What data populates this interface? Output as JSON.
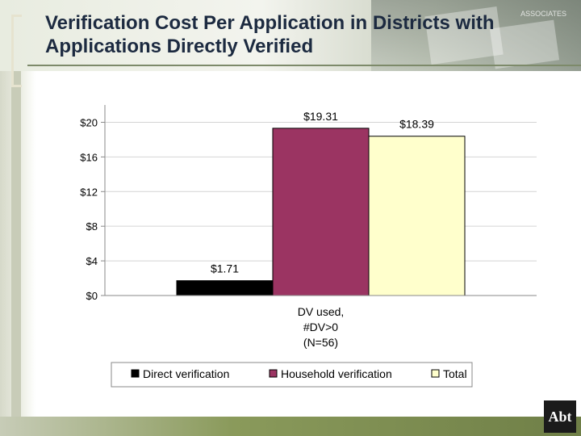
{
  "slide": {
    "title": "Verification Cost Per Application in Districts with Applications Directly Verified",
    "header_label": "ASSOCIATES",
    "logo": "Abt"
  },
  "colors": {
    "direct": "#000000",
    "household": "#9b3462",
    "total": "#ffffcc",
    "title": "#1c2a40",
    "footer": "#7d8a4e"
  },
  "chart_data": {
    "type": "bar",
    "categories": [
      "DV used,\n#DV>0\n(N=56)"
    ],
    "category_lines": [
      "DV used,",
      "#DV>0",
      "(N=56)"
    ],
    "series": [
      {
        "name": "Direct verification",
        "values": [
          1.71
        ],
        "label": "$1.71",
        "color": "#000000"
      },
      {
        "name": "Household verification",
        "values": [
          19.31
        ],
        "label": "$19.31",
        "color": "#9b3462"
      },
      {
        "name": "Total",
        "values": [
          18.39
        ],
        "label": "$18.39",
        "color": "#ffffcc"
      }
    ],
    "yticks": [
      0,
      4,
      8,
      12,
      16,
      20
    ],
    "ytick_labels": [
      "$0",
      "$4",
      "$8",
      "$12",
      "$16",
      "$20"
    ],
    "ylim": [
      0,
      22
    ],
    "grid": true,
    "legend_position": "bottom",
    "title": "",
    "xlabel": "",
    "ylabel": ""
  }
}
